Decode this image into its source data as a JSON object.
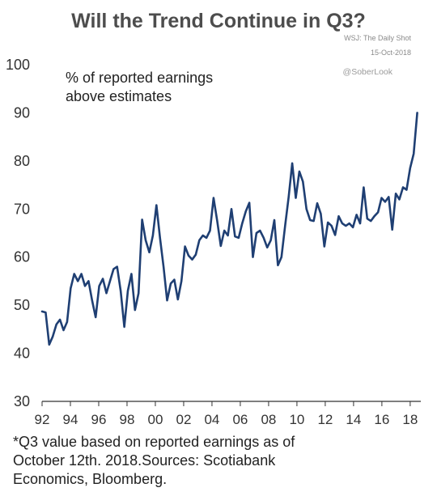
{
  "header": {
    "title": "Will the Trend Continue in Q3?",
    "source_line1": "WSJ: The Daily Shot",
    "source_line2": "15-Oct-2018",
    "handle": "@SoberLook"
  },
  "footnote": {
    "line1": "*Q3 value based on reported earnings as of",
    "line2": "October 12th. 2018.Sources: Scotiabank",
    "line3": "Economics, Bloomberg."
  },
  "chart_data": {
    "type": "line",
    "title": "Will the Trend Continue in Q3?",
    "annotation_line1": "% of reported earnings",
    "annotation_line2": "above estimates",
    "xlabel": "",
    "ylabel": "",
    "ylim": [
      30,
      100
    ],
    "xlim": [
      1992,
      2018.75
    ],
    "yticks": [
      "30",
      "40",
      "50",
      "60",
      "70",
      "80",
      "90",
      "100"
    ],
    "xtick_labels": [
      "92",
      "94",
      "96",
      "98",
      "00",
      "02",
      "04",
      "06",
      "08",
      "10",
      "12",
      "14",
      "16",
      "18"
    ],
    "grid": false,
    "line_color": "#1f3f73",
    "series": [
      {
        "values": [
          48.7,
          48.5,
          41.8,
          43.5,
          46,
          47,
          44.8,
          46.5,
          53.5,
          56.5,
          55,
          56.5,
          54,
          55,
          51,
          47.5,
          54,
          55.5,
          52.5,
          55,
          57.5,
          58,
          53,
          45.5,
          53,
          56.5,
          49,
          52.5,
          67.8,
          63.5,
          61,
          64.5,
          70.8,
          64,
          58,
          51,
          54.5,
          55.3,
          51.2,
          55,
          62.2,
          60.3,
          59.5,
          60.5,
          63.5,
          64.5,
          64,
          65.5,
          72.3,
          67.5,
          62.3,
          65.5,
          64.5,
          70,
          64.3,
          64,
          67,
          69.5,
          71.3,
          60,
          65,
          65.5,
          64,
          62,
          63.5,
          67.7,
          58.3,
          60,
          66.5,
          72.5,
          79.5,
          72.3,
          77.8,
          75.7,
          70,
          67.7,
          67.5,
          71.2,
          69,
          62.2,
          67.2,
          66.5,
          64.6,
          68.5,
          67,
          66.5,
          67,
          66.2,
          68.8,
          67,
          74.5,
          68,
          67.5,
          68.5,
          69.3,
          72.3,
          71.5,
          72.5,
          65.7,
          73.2,
          72,
          74.5,
          74,
          78.5,
          81.5,
          90
        ]
      }
    ]
  }
}
